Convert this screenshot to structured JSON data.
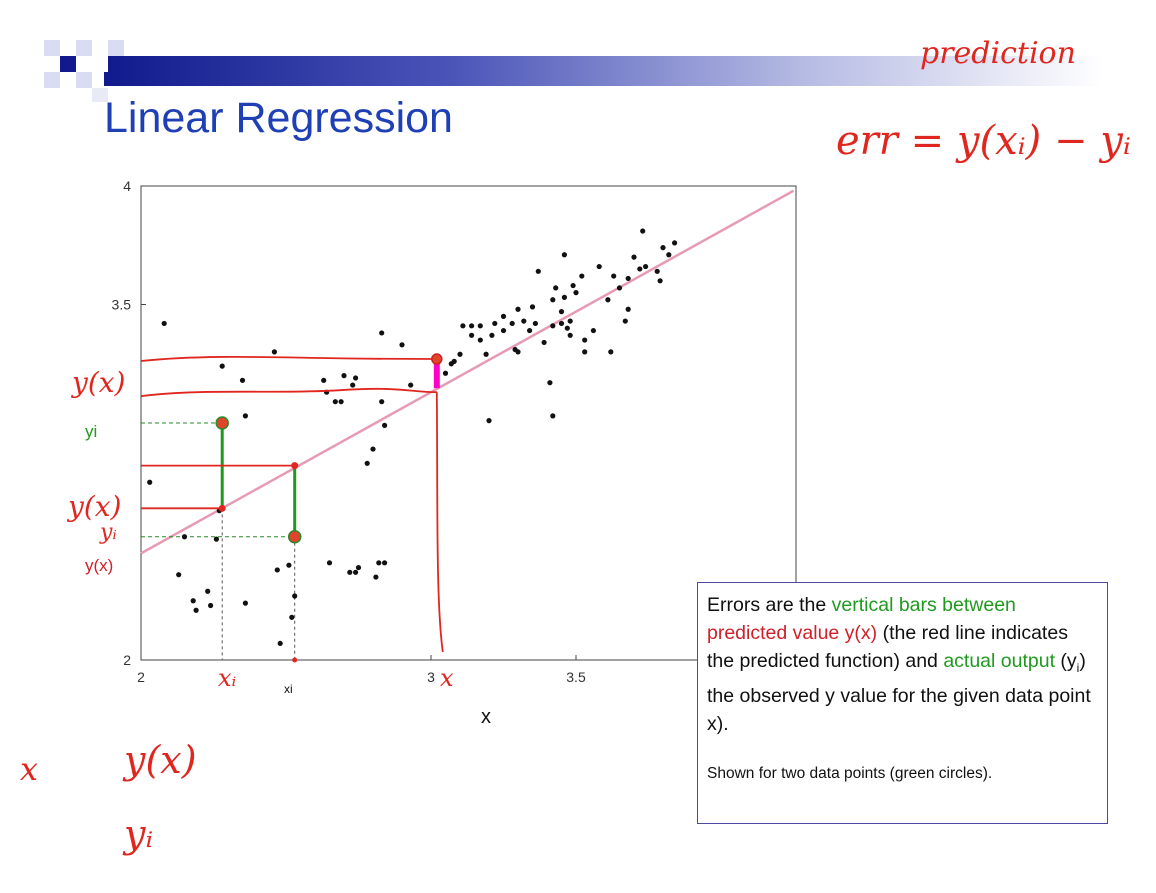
{
  "slide": {
    "title": "Linear Regression"
  },
  "chart_data": {
    "type": "scatter",
    "xlabel": "x",
    "ylabel": "",
    "xlim": [
      2,
      4.25
    ],
    "ylim": [
      2,
      4
    ],
    "xticks": [
      "2",
      "3",
      "3.5"
    ],
    "yticks": [
      "2",
      "3.5",
      "4"
    ],
    "regression_line": {
      "x": [
        2,
        4.25
      ],
      "y": [
        2.45,
        3.98
      ],
      "color": "#e79bb3"
    },
    "points": [
      [
        2.08,
        3.42
      ],
      [
        2.28,
        3.24
      ],
      [
        2.03,
        2.75
      ],
      [
        2.13,
        2.36
      ],
      [
        2.15,
        2.52
      ],
      [
        2.18,
        2.25
      ],
      [
        2.19,
        2.21
      ],
      [
        2.24,
        2.23
      ],
      [
        2.23,
        2.29
      ],
      [
        2.26,
        2.51
      ],
      [
        2.27,
        2.63
      ],
      [
        2.36,
        3.03
      ],
      [
        2.35,
        3.18
      ],
      [
        2.36,
        2.24
      ],
      [
        2.46,
        3.3
      ],
      [
        2.47,
        2.38
      ],
      [
        2.48,
        2.07
      ],
      [
        2.51,
        2.4
      ],
      [
        2.52,
        2.18
      ],
      [
        2.53,
        2.27
      ],
      [
        2.63,
        3.18
      ],
      [
        2.64,
        3.13
      ],
      [
        2.65,
        2.41
      ],
      [
        2.67,
        3.09
      ],
      [
        2.69,
        3.09
      ],
      [
        2.7,
        3.2
      ],
      [
        2.72,
        2.37
      ],
      [
        2.73,
        3.16
      ],
      [
        2.74,
        2.37
      ],
      [
        2.74,
        3.19
      ],
      [
        2.75,
        2.39
      ],
      [
        2.78,
        2.83
      ],
      [
        2.8,
        2.89
      ],
      [
        2.81,
        2.35
      ],
      [
        2.82,
        2.41
      ],
      [
        2.83,
        3.09
      ],
      [
        2.84,
        2.41
      ],
      [
        2.84,
        2.99
      ],
      [
        2.83,
        3.38
      ],
      [
        2.9,
        3.33
      ],
      [
        2.93,
        3.16
      ],
      [
        3.05,
        3.21
      ],
      [
        3.07,
        3.25
      ],
      [
        3.08,
        3.26
      ],
      [
        3.1,
        3.29
      ],
      [
        3.11,
        3.41
      ],
      [
        3.14,
        3.37
      ],
      [
        3.14,
        3.41
      ],
      [
        3.17,
        3.35
      ],
      [
        3.17,
        3.41
      ],
      [
        3.19,
        3.29
      ],
      [
        3.2,
        3.01
      ],
      [
        3.21,
        3.37
      ],
      [
        3.22,
        3.42
      ],
      [
        3.25,
        3.45
      ],
      [
        3.25,
        3.39
      ],
      [
        3.28,
        3.42
      ],
      [
        3.29,
        3.31
      ],
      [
        3.3,
        3.48
      ],
      [
        3.3,
        3.3
      ],
      [
        3.32,
        3.43
      ],
      [
        3.34,
        3.39
      ],
      [
        3.35,
        3.49
      ],
      [
        3.36,
        3.42
      ],
      [
        3.37,
        3.64
      ],
      [
        3.39,
        3.34
      ],
      [
        3.42,
        3.52
      ],
      [
        3.41,
        3.17
      ],
      [
        3.42,
        3.03
      ],
      [
        3.43,
        3.57
      ],
      [
        3.45,
        3.47
      ],
      [
        3.46,
        3.71
      ],
      [
        3.46,
        3.53
      ],
      [
        3.48,
        3.43
      ],
      [
        3.49,
        3.58
      ],
      [
        3.5,
        3.55
      ],
      [
        3.52,
        3.62
      ],
      [
        3.53,
        3.35
      ],
      [
        3.53,
        3.3
      ],
      [
        3.56,
        3.39
      ],
      [
        3.58,
        3.66
      ],
      [
        3.61,
        3.52
      ],
      [
        3.62,
        3.3
      ],
      [
        3.63,
        3.62
      ],
      [
        3.65,
        3.57
      ],
      [
        3.67,
        3.43
      ],
      [
        3.68,
        3.48
      ],
      [
        3.68,
        3.61
      ],
      [
        3.7,
        3.7
      ],
      [
        3.72,
        3.65
      ],
      [
        3.73,
        3.81
      ],
      [
        3.74,
        3.66
      ],
      [
        3.78,
        3.64
      ],
      [
        3.79,
        3.6
      ],
      [
        3.82,
        3.71
      ],
      [
        3.8,
        3.74
      ],
      [
        3.84,
        3.76
      ],
      [
        3.42,
        3.41
      ],
      [
        3.45,
        3.42
      ],
      [
        3.47,
        3.4
      ],
      [
        3.48,
        3.37
      ]
    ],
    "highlighted_points": [
      {
        "x": 2.28,
        "y_observed": 3.0,
        "y_predicted": 2.64
      },
      {
        "x": 2.53,
        "y_observed": 2.52,
        "y_predicted": 2.82
      }
    ],
    "grid": false
  },
  "handwriting": {
    "prediction": "prediction",
    "err_formula": "err = y(xᵢ) − yᵢ",
    "left_yx_top": "y(x)",
    "left_yx_mid": "y(x)",
    "left_yi_mid": "yᵢ",
    "xi_axis": "xᵢ",
    "x_axis_mark": "x",
    "bottom_x": "x",
    "bottom_yx": "y(x)",
    "bottom_yi": "yᵢ"
  },
  "labels": {
    "yi_label": "yi",
    "yx_label": "y(x)",
    "xi_label": "xi"
  },
  "note": {
    "t1": "Errors are the ",
    "t2": "vertical bars between",
    "t3": "predicted value y(x)",
    "t4": " (the red line indicates the predicted function) and ",
    "t5": "actual output",
    "t6": " (y",
    "t6s": "i",
    "t7": ") the observed y value for the given data point x).",
    "t8": "Shown for two data points (green circles)."
  },
  "colors": {
    "title": "#1f3fb5",
    "line": "#e79bb3",
    "annotation": "#e0271f",
    "error_bar": "#1f9a1f",
    "highlight": "#ff00c8"
  }
}
